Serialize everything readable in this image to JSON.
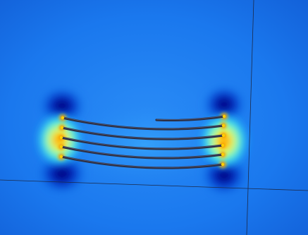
{
  "scene": {
    "kind": "field-simulation-render",
    "colormap": "rainbow",
    "background_color": "#1a78ee",
    "conductor_color": "#2b2f45",
    "axis_line_color": "#1c2a4a",
    "coil_turns": 5
  }
}
